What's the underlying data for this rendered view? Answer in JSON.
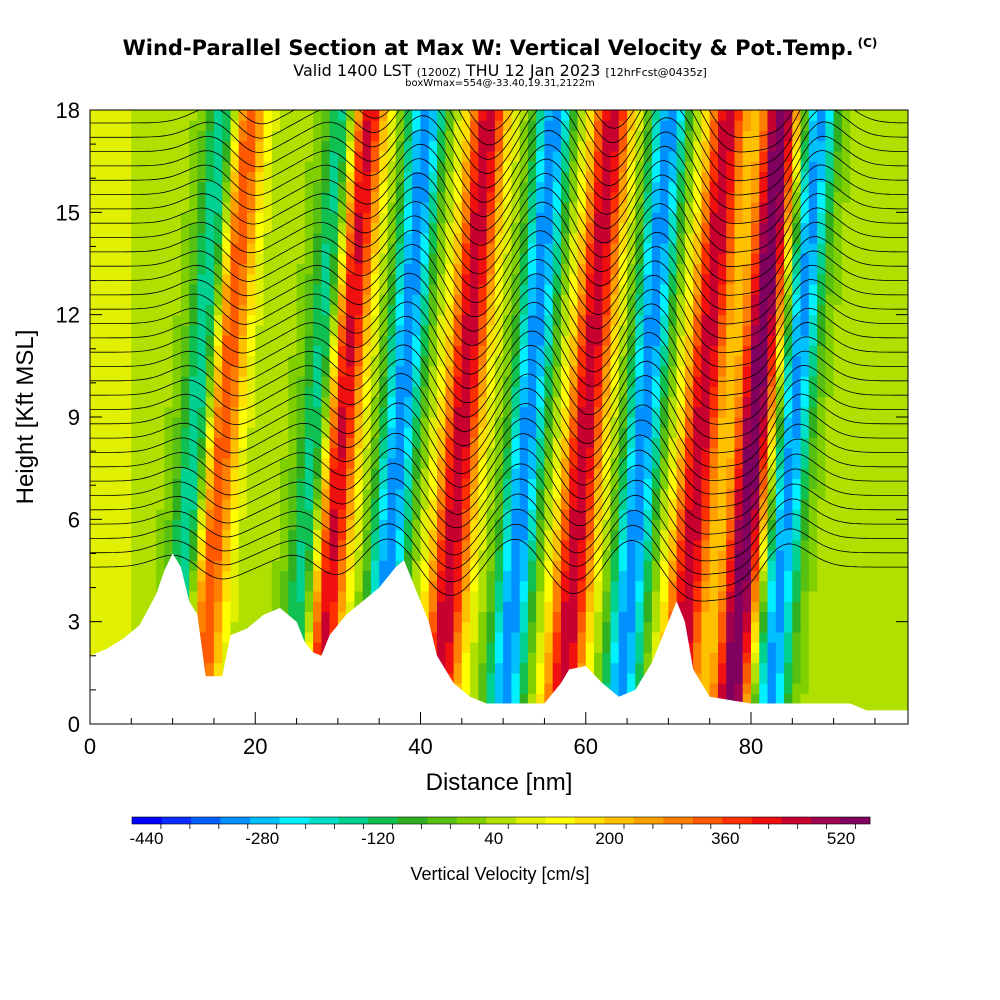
{
  "header": {
    "title": "Wind-Parallel Section at Max W: Vertical Velocity & Pot.Temp.",
    "copyright_mark": "(C)",
    "subtitle_lead": "Valid 1400 LST",
    "subtitle_zulu": "(1200Z)",
    "subtitle_date": "THU 12 Jan 2023",
    "subtitle_fcst": "[12hrFcst@0435z]",
    "subtitle2": "boxWmax=554@-33.40,19.31,2122m"
  },
  "chart_data": {
    "type": "heatmap",
    "title": "Wind-Parallel Section at Max W: Vertical Velocity & Pot.Temp.",
    "xlabel": "Distance [nm]",
    "ylabel": "Height [Kft MSL]",
    "xlim": [
      0,
      99
    ],
    "ylim": [
      0,
      18
    ],
    "x_ticks": [
      0,
      20,
      40,
      60,
      80
    ],
    "y_ticks": [
      0,
      3,
      6,
      9,
      12,
      15,
      18
    ],
    "colorbar": {
      "label": "Vertical Velocity [cm/s]",
      "min": -460,
      "max": 560,
      "step": 40,
      "tick_labels": [
        "-440",
        "-280",
        "-120",
        "40",
        "200",
        "360",
        "520"
      ],
      "tick_values": [
        -440,
        -280,
        -120,
        40,
        200,
        360,
        520
      ],
      "colors": [
        "#0000ff",
        "#0a2cff",
        "#0060ff",
        "#0090ff",
        "#00c0ff",
        "#00f0ff",
        "#00e0c8",
        "#00d090",
        "#10c050",
        "#30b020",
        "#58c010",
        "#80d000",
        "#b0e000",
        "#e0f000",
        "#ffff00",
        "#ffe000",
        "#ffc000",
        "#ffa000",
        "#ff8000",
        "#ff5a00",
        "#ff3000",
        "#f01010",
        "#c80030",
        "#a00050",
        "#800060"
      ]
    },
    "updraft_centers_nm": [
      13.5,
      28,
      43,
      58,
      72,
      78.5
    ],
    "downdraft_centers_nm": [
      11.5,
      26,
      35.5,
      51,
      65,
      83
    ],
    "peak_w": 554,
    "terrain_kft": [
      [
        0,
        2
      ],
      [
        2,
        2.2
      ],
      [
        4,
        2.5
      ],
      [
        6,
        2.9
      ],
      [
        8,
        3.8
      ],
      [
        9,
        4.5
      ],
      [
        10,
        5.0
      ],
      [
        11,
        4.6
      ],
      [
        12,
        3.6
      ],
      [
        13,
        3.2
      ],
      [
        14,
        1.4
      ],
      [
        16,
        1.4
      ],
      [
        17,
        2.6
      ],
      [
        19,
        2.8
      ],
      [
        21,
        3.2
      ],
      [
        23,
        3.4
      ],
      [
        25,
        3.0
      ],
      [
        26,
        2.4
      ],
      [
        27,
        2.1
      ],
      [
        28,
        2.0
      ],
      [
        29,
        2.6
      ],
      [
        31,
        3.2
      ],
      [
        33,
        3.6
      ],
      [
        35,
        4.0
      ],
      [
        37,
        4.6
      ],
      [
        38,
        4.8
      ],
      [
        39,
        4.2
      ],
      [
        40,
        3.6
      ],
      [
        41,
        3.0
      ],
      [
        42,
        2.0
      ],
      [
        44,
        1.2
      ],
      [
        46,
        0.8
      ],
      [
        48,
        0.6
      ],
      [
        55,
        0.6
      ],
      [
        57,
        1.2
      ],
      [
        58,
        1.6
      ],
      [
        60,
        1.7
      ],
      [
        62,
        1.2
      ],
      [
        64,
        0.8
      ],
      [
        66,
        1.0
      ],
      [
        68,
        1.8
      ],
      [
        70,
        3.0
      ],
      [
        71,
        3.6
      ],
      [
        72,
        3.0
      ],
      [
        73,
        1.6
      ],
      [
        75,
        0.8
      ],
      [
        80,
        0.6
      ],
      [
        92,
        0.6
      ],
      [
        94,
        0.4
      ],
      [
        99,
        0.4
      ]
    ],
    "theta_contours": "potential temperature isentropes (black lines)"
  }
}
